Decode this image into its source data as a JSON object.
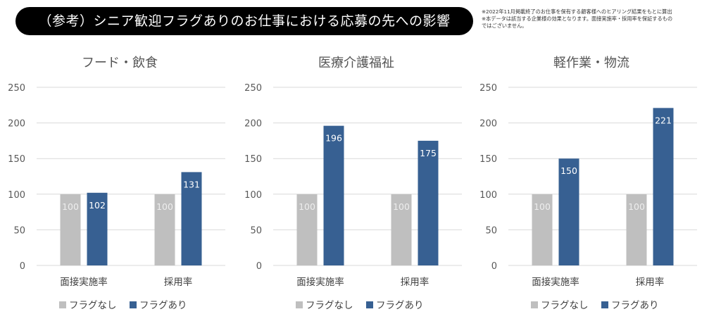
{
  "header": {
    "title": "（参考）シニア歓迎フラグありのお仕事における応募の先への影響",
    "notes": [
      "※2022年11月掲載終了のお仕事を保有する顧客様へのヒアリング結果をもとに算出",
      "※本データは該当する企業様の効果となります。面接実施率・採用率を保証するもの",
      "ではございません。"
    ]
  },
  "chart_data": [
    {
      "type": "bar",
      "title": "フード・飲食",
      "categories": [
        "面接実施率",
        "採用率"
      ],
      "series": [
        {
          "name": "フラグなし",
          "values": [
            100,
            100
          ],
          "color": "#bfbfbf"
        },
        {
          "name": "フラグあり",
          "values": [
            102,
            131
          ],
          "color": "#376092"
        }
      ],
      "ylim": [
        0,
        250
      ],
      "yticks": [
        0,
        50,
        100,
        150,
        200,
        250
      ],
      "grid": true,
      "legend": "bottom"
    },
    {
      "type": "bar",
      "title": "医療介護福祉",
      "categories": [
        "面接実施率",
        "採用率"
      ],
      "series": [
        {
          "name": "フラグなし",
          "values": [
            100,
            100
          ],
          "color": "#bfbfbf"
        },
        {
          "name": "フラグあり",
          "values": [
            196,
            175
          ],
          "color": "#376092"
        }
      ],
      "ylim": [
        0,
        250
      ],
      "yticks": [
        0,
        50,
        100,
        150,
        200,
        250
      ],
      "grid": true,
      "legend": "bottom"
    },
    {
      "type": "bar",
      "title": "軽作業・物流",
      "categories": [
        "面接実施率",
        "採用率"
      ],
      "series": [
        {
          "name": "フラグなし",
          "values": [
            100,
            100
          ],
          "color": "#bfbfbf"
        },
        {
          "name": "フラグあり",
          "values": [
            150,
            221
          ],
          "color": "#376092"
        }
      ],
      "ylim": [
        0,
        250
      ],
      "yticks": [
        0,
        50,
        100,
        150,
        200,
        250
      ],
      "grid": true,
      "legend": "bottom"
    }
  ]
}
